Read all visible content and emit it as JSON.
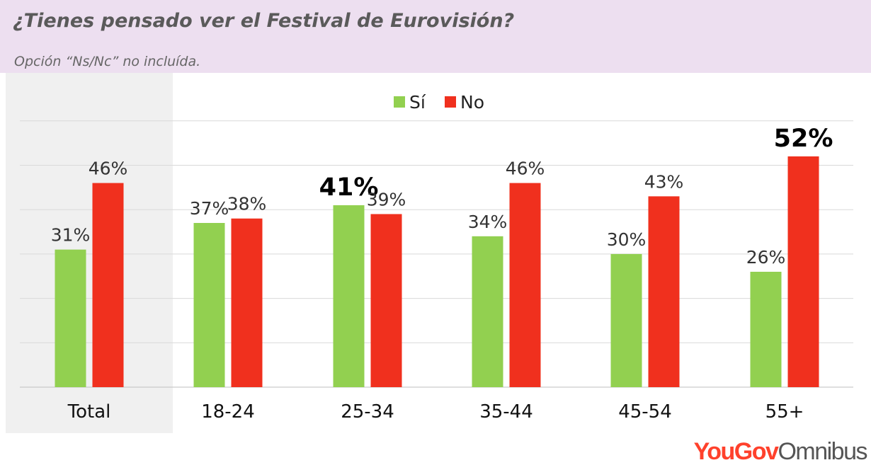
{
  "header": {
    "title": "¿Tienes pensado ver el Festival de Eurovisión?",
    "subtitle": "Opción “Ns/Nc” no incluída."
  },
  "brand": {
    "yougov": "YouGov",
    "omnibus": "Omnibus"
  },
  "colors": {
    "si": "#92d050",
    "no": "#f0301e",
    "total_background": "#f0f0f0",
    "header_background": "#eddff0",
    "gridline": "#d9d9d9"
  },
  "chart_data": {
    "type": "bar",
    "categories": [
      "Total",
      "18-24",
      "25-34",
      "35-44",
      "45-54",
      "55+"
    ],
    "series": [
      {
        "name": "Sí",
        "values": [
          31,
          37,
          41,
          34,
          30,
          26
        ],
        "labels": [
          "31%",
          "37%",
          "41%",
          "34%",
          "30%",
          "26%"
        ]
      },
      {
        "name": "No",
        "values": [
          46,
          38,
          39,
          46,
          43,
          52
        ],
        "labels": [
          "46%",
          "38%",
          "39%",
          "46%",
          "43%",
          "52%"
        ]
      }
    ],
    "highlighted": [
      {
        "series": "Sí",
        "category": "25-34"
      },
      {
        "series": "No",
        "category": "55+"
      }
    ],
    "ylim": [
      0,
      60
    ],
    "grid": true,
    "legend": "top-center"
  }
}
